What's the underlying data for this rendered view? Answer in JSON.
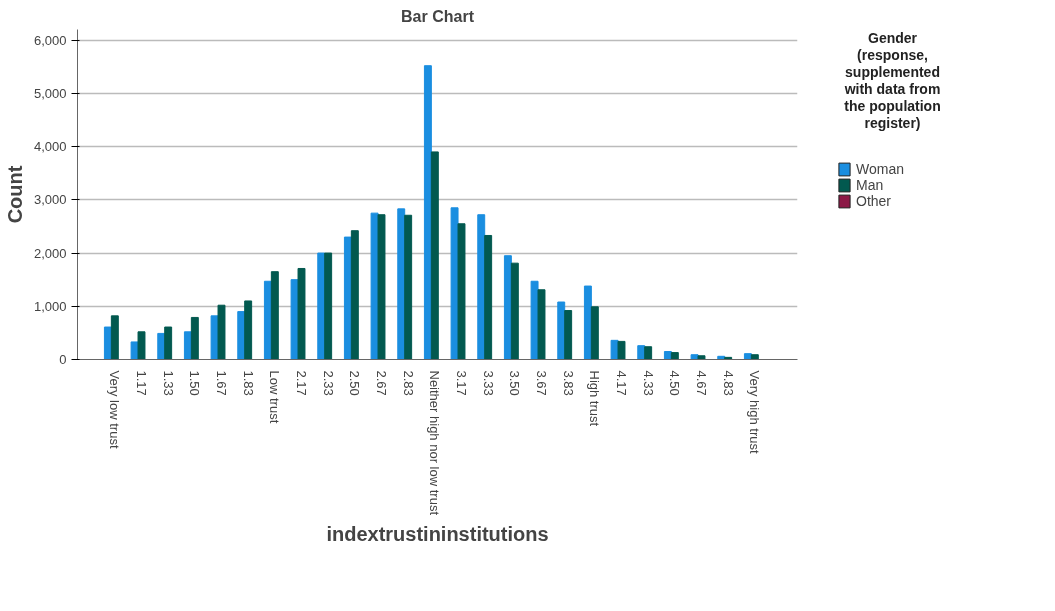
{
  "chart_data": {
    "type": "bar",
    "title": "Bar Chart",
    "xlabel": "indextrustininstitutions",
    "ylabel": "Count",
    "legend_title": "Gender (response, supplemented with data from the population register)",
    "categories": [
      "Very low trust",
      "1.17",
      "1.33",
      "1.50",
      "1.67",
      "1.83",
      "Low trust",
      "2.17",
      "2.33",
      "2.50",
      "2.67",
      "2.83",
      "Neither high nor low trust",
      "3.17",
      "3.33",
      "3.50",
      "3.67",
      "3.83",
      "High trust",
      "4.17",
      "4.33",
      "4.50",
      "4.67",
      "4.83",
      "Very high trust"
    ],
    "series": [
      {
        "name": "Woman",
        "color": "#1a8ee0",
        "values": [
          610,
          330,
          490,
          520,
          820,
          900,
          1470,
          1500,
          2000,
          2300,
          2750,
          2830,
          5520,
          2850,
          2720,
          1950,
          1470,
          1080,
          1380,
          360,
          260,
          150,
          90,
          60,
          110
        ]
      },
      {
        "name": "Man",
        "color": "#02594f",
        "values": [
          820,
          520,
          610,
          790,
          1020,
          1100,
          1650,
          1710,
          2000,
          2420,
          2720,
          2710,
          3900,
          2550,
          2330,
          1810,
          1310,
          920,
          990,
          340,
          240,
          130,
          70,
          40,
          90
        ]
      },
      {
        "name": "Other",
        "color": "#8c1846",
        "values": [
          0,
          0,
          0,
          0,
          0,
          0,
          0,
          0,
          0,
          0,
          0,
          0,
          0,
          0,
          0,
          0,
          0,
          0,
          0,
          0,
          0,
          0,
          0,
          0,
          0
        ]
      }
    ],
    "ylim": [
      0,
      6200
    ],
    "yticks": [
      0,
      {
        "value": 1000,
        "label": "1,000"
      },
      {
        "value": 2000,
        "label": "2,000"
      },
      {
        "value": 3000,
        "label": "3,000"
      },
      {
        "value": 4000,
        "label": "4,000"
      },
      {
        "value": 5000,
        "label": "5,000"
      },
      {
        "value": 6000,
        "label": "6,000"
      }
    ],
    "grid": "y",
    "legend": "right"
  }
}
